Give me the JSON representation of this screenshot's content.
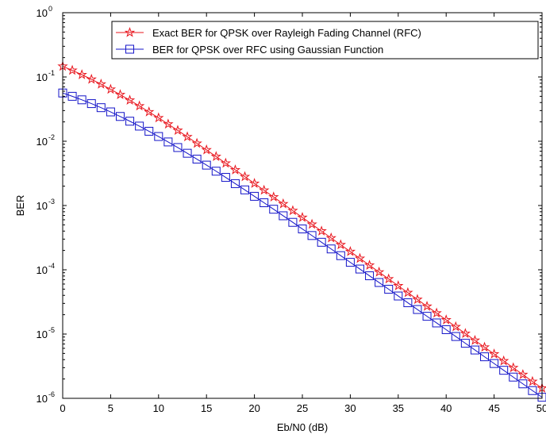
{
  "chart_data": {
    "type": "line",
    "xlabel": "Eb/N0 (dB)",
    "ylabel": "BER",
    "xlim": [
      0,
      50
    ],
    "ylim": [
      1e-06,
      1
    ],
    "yscale": "log",
    "grid": false,
    "legend_position": "top-right",
    "x_ticks": [
      "0",
      "5",
      "10",
      "15",
      "20",
      "25",
      "30",
      "35",
      "40",
      "45",
      "50"
    ],
    "y_ticks": [
      {
        "base": "10",
        "exp": "0"
      },
      {
        "base": "10",
        "exp": "-1"
      },
      {
        "base": "10",
        "exp": "-2"
      },
      {
        "base": "10",
        "exp": "-3"
      },
      {
        "base": "10",
        "exp": "-4"
      },
      {
        "base": "10",
        "exp": "-5"
      },
      {
        "base": "10",
        "exp": "-6"
      }
    ],
    "x": [
      0,
      1,
      2,
      3,
      4,
      5,
      6,
      7,
      8,
      9,
      10,
      11,
      12,
      13,
      14,
      15,
      16,
      17,
      18,
      19,
      20,
      21,
      22,
      23,
      24,
      25,
      26,
      27,
      28,
      29,
      30,
      31,
      32,
      33,
      34,
      35,
      36,
      37,
      38,
      39,
      40,
      41,
      42,
      43,
      44,
      45,
      46,
      47,
      48,
      49,
      50
    ],
    "series": [
      {
        "name": "Exact BER for QPSK over Rayleigh Fading Channel (RFC)",
        "color": "#e8141c",
        "marker": "pentagram",
        "values": [
          0.1464,
          0.1267,
          0.1085,
          0.092,
          0.0773,
          0.0643,
          0.0531,
          0.0435,
          0.0354,
          0.0286,
          0.0231,
          0.01848,
          0.01474,
          0.01171,
          0.00928,
          0.00733,
          0.00578,
          0.00455,
          0.00358,
          0.00281,
          0.002204,
          0.001729,
          0.001356,
          0.001062,
          0.000832,
          0.000652,
          0.00051,
          0.0004,
          0.000313,
          0.000245,
          0.000192,
          0.0001501,
          0.0001175,
          9.2e-05,
          7.2e-05,
          5.64e-05,
          4.41e-05,
          3.45e-05,
          2.7e-05,
          2.12e-05,
          1.66e-05,
          1.3e-05,
          1.02e-05,
          7.97e-06,
          6.24e-06,
          4.89e-06,
          3.82e-06,
          2.99e-06,
          2.34e-06,
          1.83e-06,
          1.44e-06
        ]
      },
      {
        "name": "BER for QPSK over RFC using Gaussian Function",
        "color": "#1414c8",
        "marker": "square",
        "values": [
          0.0563,
          0.05,
          0.0441,
          0.0385,
          0.0333,
          0.0286,
          0.0243,
          0.0205,
          0.0172,
          0.0143,
          0.01185,
          0.00975,
          0.00798,
          0.0065,
          0.00527,
          0.00425,
          0.00342,
          0.00274,
          0.00219,
          0.00175,
          0.00139,
          0.001104,
          0.000875,
          0.000692,
          0.000547,
          0.000432,
          0.000341,
          0.000268,
          0.000211,
          0.000166,
          0.0001306,
          0.0001027,
          8.07e-05,
          6.34e-05,
          4.98e-05,
          3.91e-05,
          3.07e-05,
          2.41e-05,
          1.89e-05,
          1.49e-05,
          1.17e-05,
          9.16e-06,
          7.19e-06,
          5.65e-06,
          4.43e-06,
          3.48e-06,
          2.73e-06,
          2.14e-06,
          1.68e-06,
          1.32e-06,
          1.04e-06
        ]
      }
    ]
  }
}
